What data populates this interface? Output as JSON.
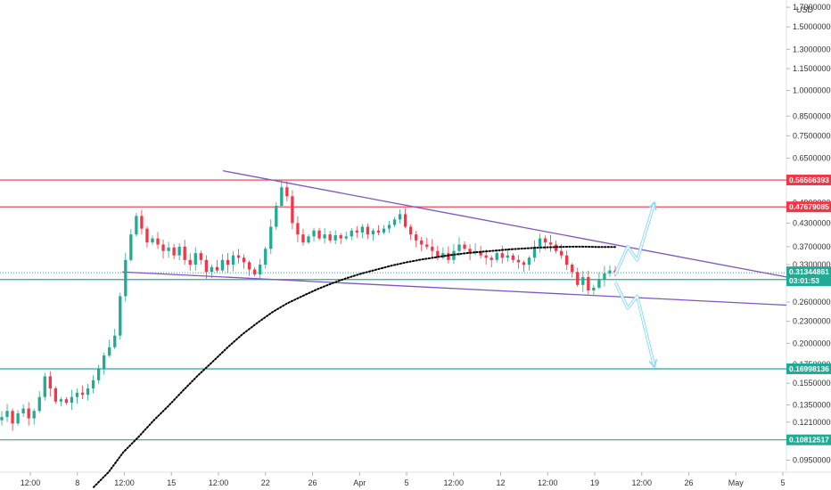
{
  "chart_data": {
    "type": "candlestick",
    "currency": "USD",
    "y_scale": "log",
    "ylim": [
      0.088,
      1.78
    ],
    "y_ticks": [
      {
        "value": 1.7,
        "label": "1.70000000"
      },
      {
        "value": 1.5,
        "label": "1.50000000"
      },
      {
        "value": 1.3,
        "label": "1.30000000"
      },
      {
        "value": 1.15,
        "label": "1.15000000"
      },
      {
        "value": 1.0,
        "label": "1.00000000"
      },
      {
        "value": 0.85,
        "label": "0.85000000"
      },
      {
        "value": 0.75,
        "label": "0.75000000"
      },
      {
        "value": 0.65,
        "label": "0.65000000"
      },
      {
        "value": 0.49,
        "label": "0.49000000"
      },
      {
        "value": 0.43,
        "label": "0.43000000"
      },
      {
        "value": 0.37,
        "label": "0.37000000"
      },
      {
        "value": 0.33,
        "label": "0.33000000"
      },
      {
        "value": 0.26,
        "label": "0.26000000"
      },
      {
        "value": 0.23,
        "label": "0.23000000"
      },
      {
        "value": 0.2,
        "label": "0.20000000"
      },
      {
        "value": 0.175,
        "label": "0.17500000"
      },
      {
        "value": 0.155,
        "label": "0.15500000"
      },
      {
        "value": 0.135,
        "label": "0.13500000"
      },
      {
        "value": 0.121,
        "label": "0.12100000"
      },
      {
        "value": 0.095,
        "label": "0.09500000"
      }
    ],
    "x_ticks": [
      "12:00",
      "8",
      "12:00",
      "15",
      "12:00",
      "22",
      "26",
      "Apr",
      "5",
      "12:00",
      "12",
      "12:00",
      "19",
      "12:00",
      "26",
      "May",
      "5"
    ],
    "horizontal_levels": [
      {
        "value": 0.56566393,
        "label": "0.56566393",
        "color": "#f23645"
      },
      {
        "value": 0.47679085,
        "label": "0.47679085",
        "color": "#f23645"
      },
      {
        "value": 0.30011124,
        "label": "0.30011124",
        "color": "#22ab94"
      },
      {
        "value": 0.16998136,
        "label": "0.16998136",
        "color": "#22ab94"
      },
      {
        "value": 0.10812517,
        "label": "0.10812517",
        "color": "#22ab94"
      }
    ],
    "current_price": {
      "value": 0.31344861,
      "label": "0.31344861",
      "countdown": "03:01:53",
      "color": "#22ab94"
    },
    "colors": {
      "up": "#22ab94",
      "down": "#f23645",
      "trendline": "#7e57c2",
      "projection": "#80d8ff",
      "ma": "#000000"
    },
    "price_path": [
      [
        0.125,
        0.13,
        0.12,
        0.128,
        0.132,
        0.124,
        0.13,
        0.142
      ],
      [
        0.162,
        0.15,
        0.138,
        0.14,
        0.137,
        0.142,
        0.146,
        0.144
      ],
      [
        0.15,
        0.158,
        0.17,
        0.185,
        0.195,
        0.21,
        0.27,
        0.34
      ],
      [
        0.4,
        0.45,
        0.415,
        0.38,
        0.39,
        0.375,
        0.36,
        0.368
      ],
      [
        0.35,
        0.37,
        0.34,
        0.33,
        0.355,
        0.34,
        0.315,
        0.325
      ],
      [
        0.318,
        0.34,
        0.33,
        0.35,
        0.345,
        0.335,
        0.32,
        0.31
      ],
      [
        0.33,
        0.365,
        0.42,
        0.48,
        0.54,
        0.51,
        0.43,
        0.4
      ],
      [
        0.38,
        0.395,
        0.41,
        0.39,
        0.4,
        0.385,
        0.398,
        0.39
      ],
      [
        0.395,
        0.41,
        0.405,
        0.42,
        0.4,
        0.41,
        0.405,
        0.415
      ],
      [
        0.425,
        0.44,
        0.455,
        0.42,
        0.4,
        0.385,
        0.375,
        0.37
      ],
      [
        0.36,
        0.345,
        0.355,
        0.34,
        0.36,
        0.375,
        0.365,
        0.355
      ],
      [
        0.36,
        0.35,
        0.345,
        0.34,
        0.355,
        0.345,
        0.35,
        0.34
      ],
      [
        0.335,
        0.33,
        0.345,
        0.37,
        0.39,
        0.38,
        0.375,
        0.36
      ],
      [
        0.35,
        0.33,
        0.315,
        0.29,
        0.305,
        0.28,
        0.285,
        0.3
      ],
      [
        0.312,
        0.318,
        0.314
      ]
    ],
    "ma_path": [
      [
        0.08,
        0.088
      ],
      [
        0.1,
        0.11,
        0.122,
        0.134,
        0.148,
        0.163
      ],
      [
        0.178,
        0.195,
        0.212,
        0.228,
        0.244,
        0.258
      ],
      [
        0.27,
        0.282,
        0.293,
        0.303,
        0.312,
        0.32
      ],
      [
        0.328,
        0.335,
        0.341,
        0.346,
        0.351,
        0.355
      ],
      [
        0.358,
        0.361,
        0.364,
        0.366,
        0.368,
        0.369
      ],
      [
        0.37,
        0.37,
        0.369,
        0.369
      ]
    ],
    "trendlines": [
      {
        "from": [
          0.0,
          0.6
        ],
        "to": [
          1.0,
          0.305
        ]
      },
      {
        "from": [
          0.0,
          0.315
        ],
        "to": [
          1.0,
          0.255
        ]
      }
    ],
    "projections": [
      {
        "points": [
          [
            0.0,
            0.31
          ],
          [
            0.08,
            0.37
          ],
          [
            0.14,
            0.34
          ],
          [
            0.25,
            0.49
          ]
        ]
      },
      {
        "points": [
          [
            0.0,
            0.295
          ],
          [
            0.08,
            0.25
          ],
          [
            0.14,
            0.27
          ],
          [
            0.25,
            0.172
          ]
        ]
      }
    ]
  }
}
